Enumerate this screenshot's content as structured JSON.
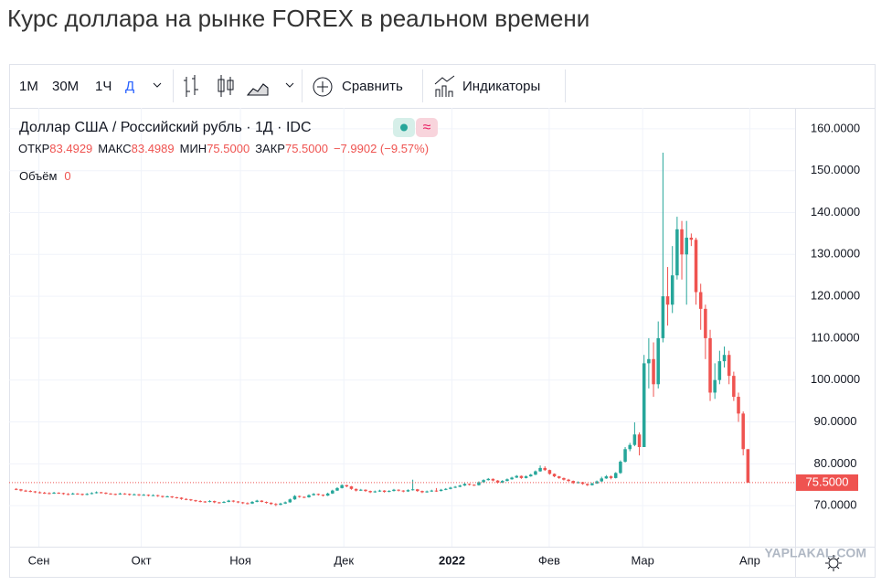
{
  "header": {
    "title": "Курс доллара на рынке FOREX в реальном времени"
  },
  "toolbar": {
    "intervals": [
      "1М",
      "30М",
      "1Ч",
      "Д"
    ],
    "compare": "Сравнить",
    "indicators": "Индикаторы"
  },
  "legend": {
    "symbol": "Доллар США / Российский рубль · 1Д · IDC",
    "badge": "≈",
    "open_label": "ОТКР",
    "open": "83.4929",
    "high_label": "МАКС",
    "high": "83.4989",
    "low_label": "МИН",
    "low": "75.5000",
    "close_label": "ЗАКР",
    "close": "75.5000",
    "change": "−7.9902 (−9.57%)",
    "volume_label": "Объём",
    "volume": "0"
  },
  "watermark": "YAPLAKAL.COM",
  "chart_data": {
    "type": "candlestick",
    "up_color": "#26a69a",
    "down_color": "#ef5350",
    "grid": true,
    "last_price": {
      "value": 75.5,
      "label": "75.5000"
    },
    "ylim": [
      60.2,
      165.0
    ],
    "yticks": [
      {
        "value": 70,
        "label": "70.0000"
      },
      {
        "value": 80,
        "label": "80.0000"
      },
      {
        "value": 90,
        "label": "90.0000"
      },
      {
        "value": 100,
        "label": "100.0000"
      },
      {
        "value": 110,
        "label": "110.0000"
      },
      {
        "value": 120,
        "label": "120.0000"
      },
      {
        "value": 130,
        "label": "130.0000"
      },
      {
        "value": 140,
        "label": "140.0000"
      },
      {
        "value": 150,
        "label": "150.0000"
      },
      {
        "value": 160,
        "label": "160.0000"
      }
    ],
    "xlim": [
      -1.5,
      165.0
    ],
    "xticks": [
      {
        "value": 4.8,
        "label": "Сен"
      },
      {
        "value": 26.5,
        "label": "Окт"
      },
      {
        "value": 47.5,
        "label": "Ноя"
      },
      {
        "value": 69.4,
        "label": "Дек"
      },
      {
        "value": 92.3,
        "label": "2022"
      },
      {
        "value": 112.9,
        "label": "Фев"
      },
      {
        "value": 132.7,
        "label": "Мар"
      },
      {
        "value": 155.4,
        "label": "Апр"
      }
    ],
    "candles": [
      [
        74.0,
        74.2,
        73.7,
        73.9
      ],
      [
        73.9,
        74.0,
        73.4,
        73.6
      ],
      [
        73.6,
        73.8,
        73.3,
        73.5
      ],
      [
        73.5,
        73.7,
        73.2,
        73.4
      ],
      [
        73.4,
        73.5,
        73.0,
        73.2
      ],
      [
        73.2,
        73.4,
        72.9,
        73.1
      ],
      [
        73.1,
        73.3,
        72.8,
        73.0
      ],
      [
        73.0,
        73.2,
        72.7,
        72.9
      ],
      [
        72.9,
        73.3,
        72.8,
        73.1
      ],
      [
        73.1,
        73.2,
        72.8,
        73.0
      ],
      [
        73.0,
        73.1,
        72.6,
        72.8
      ],
      [
        72.8,
        73.0,
        72.5,
        72.7
      ],
      [
        72.7,
        73.1,
        72.6,
        72.9
      ],
      [
        72.9,
        73.0,
        72.6,
        72.8
      ],
      [
        72.8,
        72.9,
        72.4,
        72.6
      ],
      [
        72.6,
        73.0,
        72.5,
        72.8
      ],
      [
        72.8,
        73.2,
        72.7,
        73.0
      ],
      [
        73.0,
        73.4,
        72.9,
        73.2
      ],
      [
        73.2,
        73.3,
        72.9,
        73.1
      ],
      [
        73.1,
        73.2,
        72.7,
        72.9
      ],
      [
        72.9,
        73.0,
        72.6,
        72.8
      ],
      [
        72.8,
        72.9,
        72.5,
        72.7
      ],
      [
        72.7,
        73.1,
        72.6,
        72.9
      ],
      [
        72.9,
        73.0,
        72.6,
        72.8
      ],
      [
        72.8,
        72.9,
        72.4,
        72.6
      ],
      [
        72.6,
        72.9,
        72.5,
        72.7
      ],
      [
        72.7,
        72.8,
        72.3,
        72.5
      ],
      [
        72.5,
        72.8,
        72.4,
        72.6
      ],
      [
        72.6,
        72.7,
        72.2,
        72.4
      ],
      [
        72.4,
        72.7,
        72.3,
        72.5
      ],
      [
        72.5,
        72.6,
        72.1,
        72.3
      ],
      [
        72.3,
        72.4,
        71.9,
        72.1
      ],
      [
        72.1,
        72.4,
        72.0,
        72.2
      ],
      [
        72.2,
        72.3,
        71.8,
        72.0
      ],
      [
        72.0,
        72.1,
        71.7,
        71.9
      ],
      [
        71.9,
        72.0,
        71.4,
        71.6
      ],
      [
        71.6,
        71.8,
        71.3,
        71.5
      ],
      [
        71.5,
        71.6,
        71.1,
        71.3
      ],
      [
        71.3,
        71.4,
        70.9,
        71.1
      ],
      [
        71.1,
        71.3,
        70.8,
        71.0
      ],
      [
        71.0,
        71.1,
        70.7,
        70.9
      ],
      [
        70.9,
        71.3,
        70.8,
        71.1
      ],
      [
        71.1,
        71.2,
        70.6,
        70.8
      ],
      [
        70.8,
        70.9,
        70.5,
        70.7
      ],
      [
        70.7,
        71.1,
        70.6,
        70.9
      ],
      [
        70.9,
        71.4,
        70.8,
        71.2
      ],
      [
        71.2,
        71.3,
        70.8,
        71.0
      ],
      [
        71.0,
        71.1,
        70.6,
        70.8
      ],
      [
        70.8,
        70.9,
        70.4,
        70.6
      ],
      [
        70.6,
        70.8,
        70.3,
        70.5
      ],
      [
        70.5,
        71.1,
        70.4,
        70.9
      ],
      [
        70.9,
        71.4,
        70.8,
        71.2
      ],
      [
        71.2,
        71.3,
        70.8,
        70.9
      ],
      [
        70.9,
        71.0,
        70.5,
        70.7
      ],
      [
        70.7,
        70.8,
        70.2,
        70.4
      ],
      [
        70.4,
        70.6,
        69.9,
        70.2
      ],
      [
        70.2,
        70.7,
        70.1,
        70.5
      ],
      [
        70.5,
        71.0,
        70.4,
        70.8
      ],
      [
        70.8,
        71.7,
        70.7,
        71.5
      ],
      [
        71.5,
        72.5,
        71.4,
        72.3
      ],
      [
        72.3,
        72.4,
        71.9,
        72.1
      ],
      [
        72.1,
        72.2,
        71.8,
        72.0
      ],
      [
        72.0,
        72.7,
        71.9,
        72.5
      ],
      [
        72.5,
        73.0,
        72.4,
        72.8
      ],
      [
        72.8,
        72.9,
        72.4,
        72.6
      ],
      [
        72.6,
        72.7,
        72.2,
        72.4
      ],
      [
        72.4,
        73.1,
        72.3,
        72.9
      ],
      [
        72.9,
        73.8,
        72.8,
        73.6
      ],
      [
        73.6,
        74.4,
        73.5,
        74.2
      ],
      [
        74.2,
        75.1,
        74.1,
        74.9
      ],
      [
        74.9,
        75.0,
        74.4,
        74.6
      ],
      [
        74.6,
        74.7,
        73.8,
        74.0
      ],
      [
        74.0,
        74.1,
        73.4,
        73.6
      ],
      [
        73.6,
        74.0,
        73.5,
        73.8
      ],
      [
        73.8,
        73.9,
        73.3,
        73.5
      ],
      [
        73.5,
        73.6,
        73.0,
        73.2
      ],
      [
        73.2,
        73.6,
        73.1,
        73.4
      ],
      [
        73.4,
        73.8,
        73.3,
        73.6
      ],
      [
        73.6,
        73.7,
        73.1,
        73.3
      ],
      [
        73.3,
        73.7,
        73.2,
        73.5
      ],
      [
        73.5,
        74.0,
        73.4,
        73.8
      ],
      [
        73.8,
        73.9,
        73.4,
        73.6
      ],
      [
        73.6,
        73.7,
        73.2,
        73.4
      ],
      [
        73.4,
        73.9,
        73.3,
        73.7
      ],
      [
        73.7,
        76.2,
        73.6,
        73.9
      ],
      [
        73.9,
        74.0,
        73.3,
        73.5
      ],
      [
        73.5,
        73.6,
        73.0,
        73.2
      ],
      [
        73.2,
        73.6,
        73.1,
        73.4
      ],
      [
        73.4,
        73.8,
        73.3,
        73.6
      ],
      [
        73.6,
        74.2,
        73.3,
        73.5
      ],
      [
        73.5,
        74.0,
        73.4,
        73.8
      ],
      [
        73.8,
        74.2,
        73.7,
        74.0
      ],
      [
        74.0,
        74.5,
        73.9,
        74.3
      ],
      [
        74.3,
        74.7,
        74.2,
        74.5
      ],
      [
        74.5,
        75.0,
        74.4,
        74.8
      ],
      [
        74.8,
        75.4,
        74.7,
        75.2
      ],
      [
        75.2,
        75.3,
        74.8,
        75.0
      ],
      [
        75.0,
        75.1,
        74.7,
        74.9
      ],
      [
        74.9,
        75.8,
        74.8,
        75.6
      ],
      [
        75.6,
        76.3,
        75.5,
        76.1
      ],
      [
        76.1,
        76.6,
        76.0,
        76.4
      ],
      [
        76.4,
        76.5,
        75.8,
        76.0
      ],
      [
        76.0,
        76.1,
        75.3,
        75.5
      ],
      [
        75.5,
        76.1,
        75.4,
        75.9
      ],
      [
        75.9,
        76.5,
        75.8,
        76.3
      ],
      [
        76.3,
        76.9,
        76.2,
        76.7
      ],
      [
        76.7,
        77.3,
        76.6,
        77.1
      ],
      [
        77.1,
        77.2,
        76.4,
        76.6
      ],
      [
        76.6,
        77.2,
        76.5,
        77.0
      ],
      [
        77.0,
        77.6,
        76.9,
        77.4
      ],
      [
        77.4,
        78.4,
        77.3,
        78.2
      ],
      [
        78.2,
        79.6,
        78.1,
        79.0
      ],
      [
        79.0,
        79.4,
        78.3,
        78.5
      ],
      [
        78.5,
        78.6,
        77.4,
        77.6
      ],
      [
        77.6,
        77.7,
        76.8,
        77.0
      ],
      [
        77.0,
        77.1,
        76.4,
        76.6
      ],
      [
        76.6,
        76.7,
        76.0,
        76.2
      ],
      [
        76.2,
        76.4,
        75.7,
        75.9
      ],
      [
        75.9,
        76.0,
        75.2,
        75.4
      ],
      [
        75.4,
        75.8,
        75.3,
        75.6
      ],
      [
        75.6,
        75.7,
        75.0,
        75.2
      ],
      [
        75.2,
        75.3,
        74.7,
        74.9
      ],
      [
        74.9,
        75.5,
        74.8,
        75.3
      ],
      [
        75.3,
        76.0,
        75.2,
        75.8
      ],
      [
        75.8,
        76.9,
        75.7,
        76.5
      ],
      [
        76.5,
        77.3,
        76.4,
        77.0
      ],
      [
        77.0,
        77.2,
        76.3,
        76.6
      ],
      [
        76.6,
        78.0,
        76.5,
        77.8
      ],
      [
        77.8,
        80.8,
        77.6,
        80.5
      ],
      [
        80.5,
        84.0,
        80.3,
        83.5
      ],
      [
        83.5,
        85.0,
        83.0,
        84.5
      ],
      [
        84.5,
        89.9,
        84.2,
        87.0
      ],
      [
        87.0,
        87.5,
        82.0,
        84.0
      ],
      [
        84.0,
        106.0,
        84.0,
        104.0
      ],
      [
        104.0,
        110.0,
        98.0,
        105.0
      ],
      [
        105.0,
        109.0,
        96.0,
        99.0
      ],
      [
        99.0,
        114.0,
        98.0,
        110.0
      ],
      [
        110.0,
        154.3,
        109.0,
        120.0
      ],
      [
        120.0,
        127.0,
        113.0,
        118.0
      ],
      [
        118.0,
        132.0,
        116.0,
        125.0
      ],
      [
        125.0,
        139.0,
        124.0,
        136.0
      ],
      [
        136.0,
        138.0,
        124.0,
        130.0
      ],
      [
        130.0,
        138.0,
        118.0,
        134.0
      ],
      [
        134.0,
        135.0,
        132.0,
        133.5
      ],
      [
        133.5,
        134.0,
        118.0,
        121.0
      ],
      [
        121.0,
        123.0,
        112.0,
        117.0
      ],
      [
        117.0,
        118.0,
        105.0,
        110.0
      ],
      [
        110.0,
        112.0,
        95.0,
        97.0
      ],
      [
        97.0,
        104.0,
        95.5,
        100.0
      ],
      [
        100.0,
        107.0,
        99.0,
        104.5
      ],
      [
        104.5,
        108.0,
        103.0,
        106.0
      ],
      [
        106.0,
        107.0,
        99.0,
        101.0
      ],
      [
        101.0,
        102.0,
        95.0,
        96.0
      ],
      [
        96.0,
        97.0,
        90.0,
        92.0
      ],
      [
        92.0,
        92.5,
        82.0,
        83.5
      ],
      [
        83.4929,
        83.4989,
        75.5,
        75.5
      ]
    ]
  }
}
